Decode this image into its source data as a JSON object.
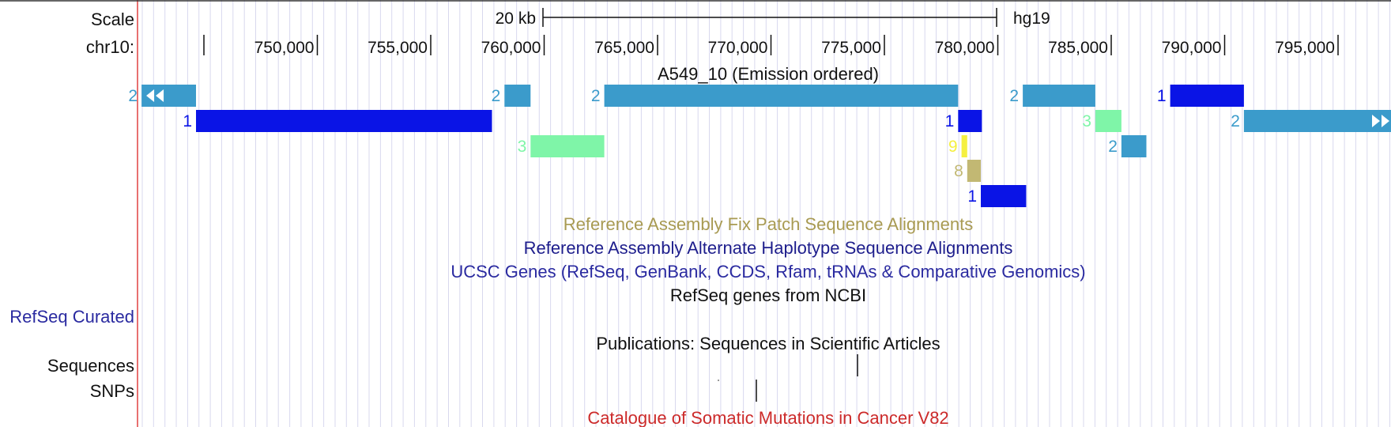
{
  "browser": {
    "left_labels": {
      "scale": "Scale",
      "chrom": "chr10:",
      "refseq_curated": "RefSeq Curated",
      "sequences": "Sequences",
      "snps": "SNPs"
    },
    "scale_bar": {
      "label": "20 kb",
      "assembly": "hg19"
    },
    "ruler_ticks": [
      "750,000",
      "755,000",
      "760,000",
      "765,000",
      "770,000",
      "775,000",
      "780,000",
      "785,000",
      "790,000",
      "795,000"
    ],
    "track_titles": {
      "segmentation": "A549_10 (Emission ordered)",
      "fix_patches": "Reference Assembly Fix Patch Sequence Alignments",
      "alt_haplotypes": "Reference Assembly Alternate Haplotype Sequence Alignments",
      "ucsc_genes": "UCSC Genes (RefSeq, GenBank, CCDS, Rfam, tRNAs & Comparative Genomics)",
      "refseq_ncbi": "RefSeq genes from NCBI",
      "publications": "Publications: Sequences in Scientific Articles",
      "cosmic": "Catalogue of Somatic Mutations in Cancer V82"
    },
    "colors": {
      "state_1": "#0a14e6",
      "state_2": "#3b9bcb",
      "state_3": "#7ff5a8",
      "state_8": "#c2b873",
      "state_9": "#f5f040",
      "fix_patch_title": "#a89a52",
      "alt_hap_title": "#1d1d8c",
      "ucsc_title": "#2a2aa0",
      "refseq_curated": "#2a2aa0",
      "cosmic_title": "#cc2a2a",
      "grid": "#d8d8ee",
      "left_border": "#e04040"
    },
    "segments": [
      {
        "state": "2",
        "row": 0,
        "start": 743250,
        "end": 745650,
        "left_arrows": true
      },
      {
        "state": "2",
        "row": 0,
        "start": 759250,
        "end": 760400
      },
      {
        "state": "2",
        "row": 0,
        "start": 763650,
        "end": 779250
      },
      {
        "state": "2",
        "row": 0,
        "start": 782100,
        "end": 785300
      },
      {
        "state": "1",
        "row": 0,
        "start": 788600,
        "end": 791850
      },
      {
        "state": "1",
        "row": 1,
        "start": 745650,
        "end": 758700
      },
      {
        "state": "1",
        "row": 1,
        "start": 779250,
        "end": 780300
      },
      {
        "state": "3",
        "row": 1,
        "start": 785300,
        "end": 786450
      },
      {
        "state": "2",
        "row": 1,
        "start": 791850,
        "end": 799700,
        "right_arrows": true
      },
      {
        "state": "3",
        "row": 2,
        "start": 760400,
        "end": 763650
      },
      {
        "state": "9",
        "row": 2,
        "start": 779400,
        "end": 779650
      },
      {
        "state": "2",
        "row": 2,
        "start": 786450,
        "end": 787550
      },
      {
        "state": "8",
        "row": 3,
        "start": 779650,
        "end": 780250
      },
      {
        "state": "1",
        "row": 4,
        "start": 780250,
        "end": 782250
      }
    ]
  }
}
